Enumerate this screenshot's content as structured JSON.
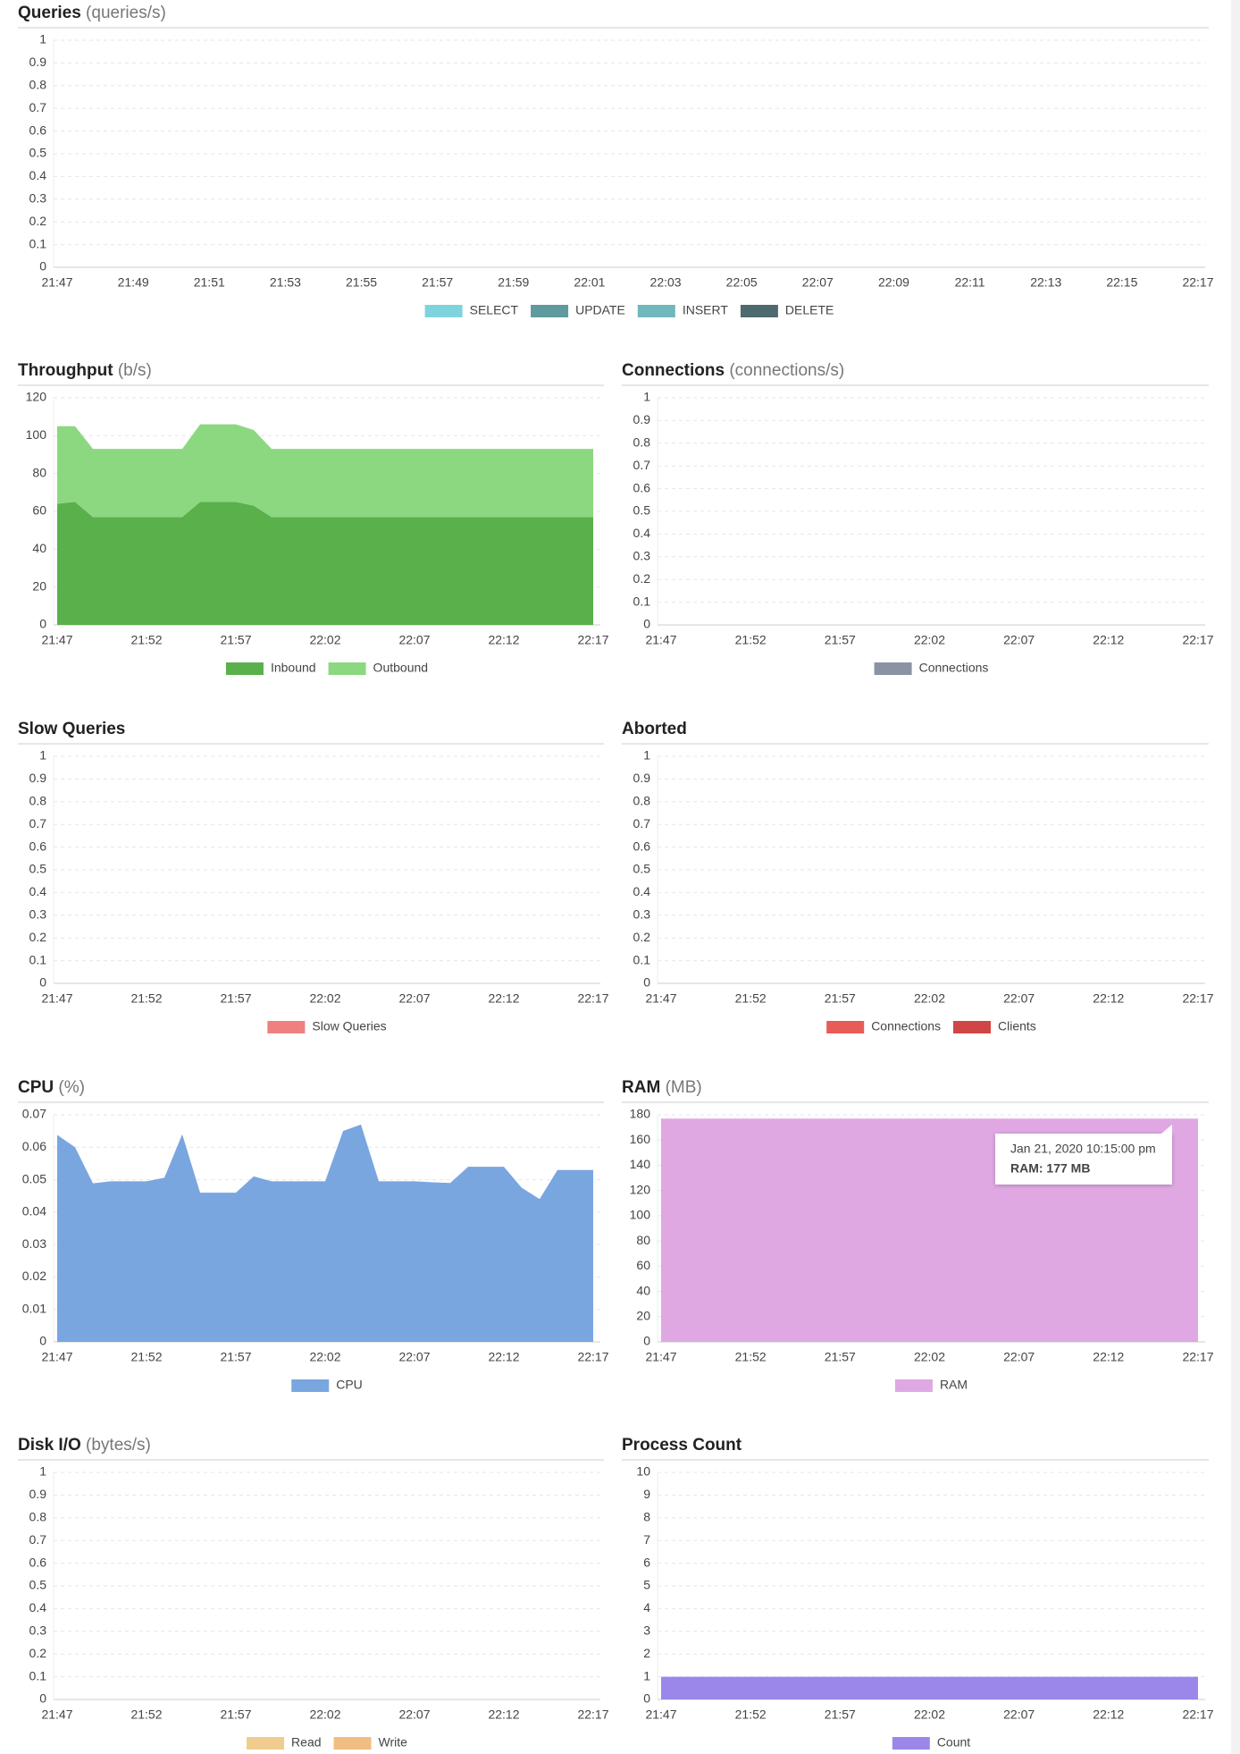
{
  "chart_data": [
    {
      "type": "area",
      "title": "Queries",
      "unit": "(queries/s)",
      "categories": [
        "21:47",
        null,
        "21:49",
        null,
        "21:51",
        null,
        "21:53",
        null,
        "21:55",
        null,
        "21:57",
        null,
        "21:59",
        null,
        "22:01",
        null,
        "22:03",
        null,
        "22:05",
        null,
        "22:07",
        null,
        "22:09",
        null,
        "22:11",
        null,
        "22:13",
        null,
        "22:15",
        null,
        "22:17"
      ],
      "series": [
        {
          "name": "SELECT",
          "color": "#7fd3dc"
        },
        {
          "name": "UPDATE",
          "color": "#5e9a9e"
        },
        {
          "name": "INSERT",
          "color": "#6fb8bc"
        },
        {
          "name": "DELETE",
          "color": "#4e6a6e"
        }
      ],
      "ylim": [
        0,
        1
      ],
      "yticks": [
        0,
        0.1,
        0.2,
        0.3,
        0.4,
        0.5,
        0.6,
        0.7,
        0.8,
        0.9,
        1
      ],
      "grid": true
    },
    {
      "type": "area",
      "title": "Throughput",
      "unit": "(b/s)",
      "categories": [
        "21:47",
        null,
        null,
        null,
        null,
        "21:52",
        null,
        null,
        null,
        null,
        "21:57",
        null,
        null,
        null,
        null,
        "22:02",
        null,
        null,
        null,
        null,
        "22:07",
        null,
        null,
        null,
        null,
        "22:12",
        null,
        null,
        null,
        null,
        "22:17"
      ],
      "series": [
        {
          "name": "Inbound",
          "color": "#5ab04b",
          "values": [
            64,
            65,
            57,
            57,
            57,
            57,
            57,
            57,
            65,
            65,
            65,
            63,
            57,
            57,
            57,
            57,
            57,
            57,
            57,
            57,
            57,
            57,
            57,
            57,
            57,
            57,
            57,
            57,
            57,
            57,
            57
          ]
        },
        {
          "name": "Outbound",
          "color": "#8cd880",
          "values": [
            41,
            40,
            36,
            36,
            36,
            36,
            36,
            36,
            41,
            41,
            41,
            40,
            36,
            36,
            36,
            36,
            36,
            36,
            36,
            36,
            36,
            36,
            36,
            36,
            36,
            36,
            36,
            36,
            36,
            36,
            36
          ]
        }
      ],
      "ylim": [
        0,
        120
      ],
      "yticks": [
        0,
        20,
        40,
        60,
        80,
        100,
        120
      ],
      "grid": true
    },
    {
      "type": "area",
      "title": "Connections",
      "unit": "(connections/s)",
      "categories": [
        "21:47",
        null,
        null,
        null,
        null,
        "21:52",
        null,
        null,
        null,
        null,
        "21:57",
        null,
        null,
        null,
        null,
        "22:02",
        null,
        null,
        null,
        null,
        "22:07",
        null,
        null,
        null,
        null,
        "22:12",
        null,
        null,
        null,
        null,
        "22:17"
      ],
      "series": [
        {
          "name": "Connections",
          "color": "#8a93a3"
        }
      ],
      "ylim": [
        0,
        1
      ],
      "yticks": [
        0,
        0.1,
        0.2,
        0.3,
        0.4,
        0.5,
        0.6,
        0.7,
        0.8,
        0.9,
        1
      ],
      "grid": true
    },
    {
      "type": "area",
      "title": "Slow Queries",
      "categories": [
        "21:47",
        null,
        null,
        null,
        null,
        "21:52",
        null,
        null,
        null,
        null,
        "21:57",
        null,
        null,
        null,
        null,
        "22:02",
        null,
        null,
        null,
        null,
        "22:07",
        null,
        null,
        null,
        null,
        "22:12",
        null,
        null,
        null,
        null,
        "22:17"
      ],
      "series": [
        {
          "name": "Slow Queries",
          "color": "#f08080"
        }
      ],
      "ylim": [
        0,
        1
      ],
      "yticks": [
        0,
        0.1,
        0.2,
        0.3,
        0.4,
        0.5,
        0.6,
        0.7,
        0.8,
        0.9,
        1
      ],
      "grid": true
    },
    {
      "type": "area",
      "title": "Aborted",
      "categories": [
        "21:47",
        null,
        null,
        null,
        null,
        "21:52",
        null,
        null,
        null,
        null,
        "21:57",
        null,
        null,
        null,
        null,
        "22:02",
        null,
        null,
        null,
        null,
        "22:07",
        null,
        null,
        null,
        null,
        "22:12",
        null,
        null,
        null,
        null,
        "22:17"
      ],
      "series": [
        {
          "name": "Connections",
          "color": "#e85b57"
        },
        {
          "name": "Clients",
          "color": "#d04646"
        }
      ],
      "ylim": [
        0,
        1
      ],
      "yticks": [
        0,
        0.1,
        0.2,
        0.3,
        0.4,
        0.5,
        0.6,
        0.7,
        0.8,
        0.9,
        1
      ],
      "grid": true
    },
    {
      "type": "area",
      "title": "CPU",
      "unit": "(%)",
      "categories": [
        "21:47",
        null,
        null,
        null,
        null,
        "21:52",
        null,
        null,
        null,
        null,
        "21:57",
        null,
        null,
        null,
        null,
        "22:02",
        null,
        null,
        null,
        null,
        "22:07",
        null,
        null,
        null,
        null,
        "22:12",
        null,
        null,
        null,
        null,
        "22:17"
      ],
      "series": [
        {
          "name": "CPU",
          "color": "#7aa6e0",
          "values": [
            0.0638,
            0.06,
            0.0489,
            0.0495,
            0.0495,
            0.0495,
            0.0506,
            0.064,
            0.046,
            0.046,
            0.046,
            0.051,
            0.0495,
            0.0495,
            0.0495,
            0.0495,
            0.065,
            0.067,
            0.0495,
            0.0495,
            0.0495,
            0.0492,
            0.049,
            0.054,
            0.054,
            0.054,
            0.0475,
            0.044,
            0.053,
            0.053,
            0.053
          ]
        }
      ],
      "ylim": [
        0,
        0.07
      ],
      "yticks": [
        0,
        0.01,
        0.02,
        0.03,
        0.04,
        0.05,
        0.06,
        0.07
      ],
      "grid": true
    },
    {
      "type": "area",
      "title": "RAM",
      "unit": "(MB)",
      "categories": [
        "21:47",
        null,
        null,
        null,
        null,
        "21:52",
        null,
        null,
        null,
        null,
        "21:57",
        null,
        null,
        null,
        null,
        "22:02",
        null,
        null,
        null,
        null,
        "22:07",
        null,
        null,
        null,
        null,
        "22:12",
        null,
        null,
        null,
        null,
        "22:17"
      ],
      "series": [
        {
          "name": "RAM",
          "color": "#dfa8e3",
          "values": [
            177,
            177,
            177,
            177,
            177,
            177,
            177,
            177,
            177,
            177,
            177,
            177,
            177,
            177,
            177,
            177,
            177,
            177,
            177,
            177,
            177,
            177,
            177,
            177,
            177,
            177,
            177,
            177,
            177,
            177,
            177
          ]
        }
      ],
      "ylim": [
        0,
        180
      ],
      "yticks": [
        0,
        20,
        40,
        60,
        80,
        100,
        120,
        140,
        160,
        180
      ],
      "grid": true,
      "tooltip": {
        "title": "Jan 21, 2020 10:15:00 pm",
        "text": "RAM: 177 MB"
      }
    },
    {
      "type": "area",
      "title": "Disk I/O",
      "unit": "(bytes/s)",
      "categories": [
        "21:47",
        null,
        null,
        null,
        null,
        "21:52",
        null,
        null,
        null,
        null,
        "21:57",
        null,
        null,
        null,
        null,
        "22:02",
        null,
        null,
        null,
        null,
        "22:07",
        null,
        null,
        null,
        null,
        "22:12",
        null,
        null,
        null,
        null,
        "22:17"
      ],
      "series": [
        {
          "name": "Read",
          "color": "#f0cc8f"
        },
        {
          "name": "Write",
          "color": "#f0be82"
        }
      ],
      "ylim": [
        0,
        1
      ],
      "yticks": [
        0,
        0.1,
        0.2,
        0.3,
        0.4,
        0.5,
        0.6,
        0.7,
        0.8,
        0.9,
        1
      ],
      "grid": true
    },
    {
      "type": "area",
      "title": "Process Count",
      "categories": [
        "21:47",
        null,
        null,
        null,
        null,
        "21:52",
        null,
        null,
        null,
        null,
        "21:57",
        null,
        null,
        null,
        null,
        "22:02",
        null,
        null,
        null,
        null,
        "22:07",
        null,
        null,
        null,
        null,
        "22:12",
        null,
        null,
        null,
        null,
        "22:17"
      ],
      "series": [
        {
          "name": "Count",
          "color": "#9b87ea",
          "values": [
            1,
            1,
            1,
            1,
            1,
            1,
            1,
            1,
            1,
            1,
            1,
            1,
            1,
            1,
            1,
            1,
            1,
            1,
            1,
            1,
            1,
            1,
            1,
            1,
            1,
            1,
            1,
            1,
            1,
            1,
            1
          ]
        }
      ],
      "ylim": [
        0,
        10
      ],
      "yticks": [
        0,
        1,
        2,
        3,
        4,
        5,
        6,
        7,
        8,
        9,
        10
      ],
      "grid": true
    }
  ]
}
